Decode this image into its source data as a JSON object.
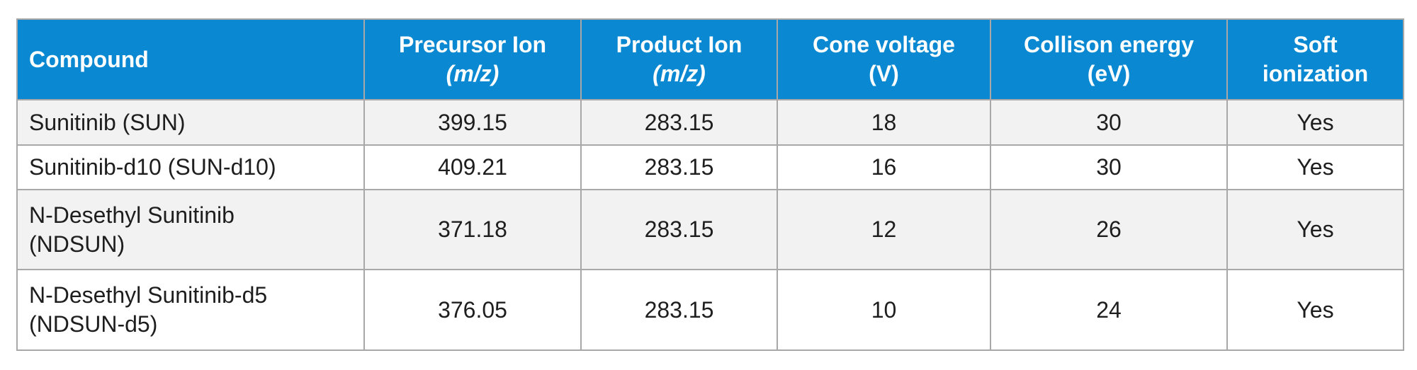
{
  "table": {
    "header": [
      {
        "lines": [
          "Compound"
        ]
      },
      {
        "lines": [
          "Precursor Ion",
          "(m/z)"
        ]
      },
      {
        "lines": [
          "Product Ion",
          "(m/z)"
        ]
      },
      {
        "lines": [
          "Cone voltage",
          "(V)"
        ]
      },
      {
        "lines": [
          "Collison energy",
          "(eV)"
        ]
      },
      {
        "lines": [
          "Soft",
          "ionization"
        ]
      }
    ],
    "rows": [
      [
        {
          "lines": [
            "Sunitinib (SUN)"
          ]
        },
        "399.15",
        "283.15",
        "18",
        "30",
        "Yes"
      ],
      [
        {
          "lines": [
            "Sunitinib-d10 (SUN-d10)"
          ]
        },
        "409.21",
        "283.15",
        "16",
        "30",
        "Yes"
      ],
      [
        {
          "lines": [
            "N-Desethyl Sunitinib",
            "(NDSUN)"
          ]
        },
        "371.18",
        "283.15",
        "12",
        "26",
        "Yes"
      ],
      [
        {
          "lines": [
            "N-Desethyl Sunitinib-d5",
            "(NDSUN-d5)"
          ]
        },
        "376.05",
        "283.15",
        "10",
        "24",
        "Yes"
      ]
    ]
  }
}
